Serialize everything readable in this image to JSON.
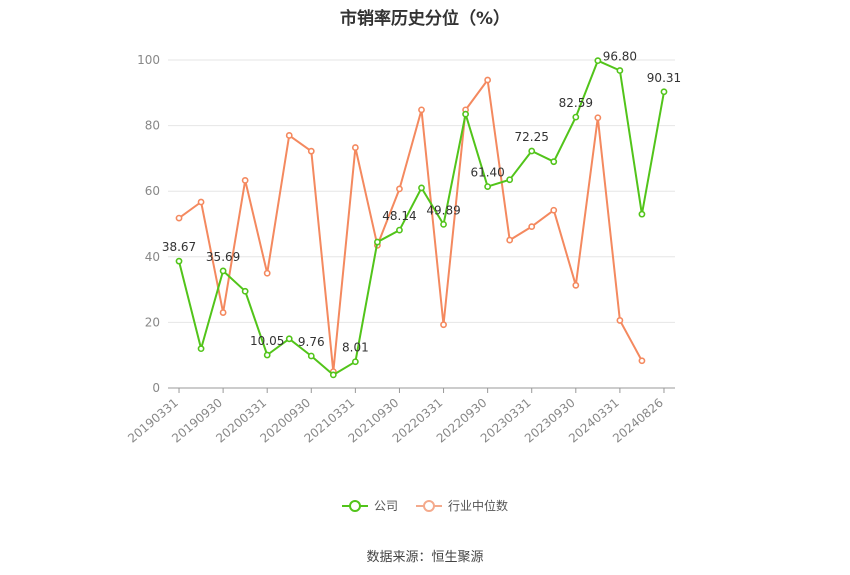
{
  "chart_data": {
    "type": "line",
    "title": "市销率历史分位（%）",
    "x_tick_labels": [
      "20190331",
      "20190930",
      "20200331",
      "20200930",
      "20210331",
      "20210930",
      "20220331",
      "20220930",
      "20230331",
      "20230930",
      "20240331",
      "20240826"
    ],
    "x": [
      "20190331",
      "20190630",
      "20190930",
      "20191231",
      "20200331",
      "20200630",
      "20200930",
      "20201231",
      "20210331",
      "20210630",
      "20210930",
      "20211231",
      "20220331",
      "20220630",
      "20220930",
      "20221231",
      "20230331",
      "20230630",
      "20230930",
      "20231231",
      "20240331",
      "20240630",
      "20240826"
    ],
    "ylim": [
      0,
      100
    ],
    "y_ticks": [
      0,
      20,
      40,
      60,
      80,
      100
    ],
    "grid": true,
    "legend_position": "bottom",
    "series": [
      {
        "name": "公司",
        "color": "#52c41a",
        "values": [
          38.67,
          12,
          35.69,
          29.5,
          10.05,
          15,
          9.76,
          4,
          8.01,
          44.5,
          48.14,
          61,
          49.89,
          83.5,
          61.4,
          63.5,
          72.25,
          69,
          82.59,
          99.8,
          96.8,
          53,
          90.31
        ],
        "labeled_points": [
          {
            "index": 0,
            "text": "38.67"
          },
          {
            "index": 2,
            "text": "35.69"
          },
          {
            "index": 4,
            "text": "10.05"
          },
          {
            "index": 6,
            "text": "9.76"
          },
          {
            "index": 8,
            "text": "8.01"
          },
          {
            "index": 10,
            "text": "48.14"
          },
          {
            "index": 12,
            "text": "49.89"
          },
          {
            "index": 14,
            "text": "61.40"
          },
          {
            "index": 16,
            "text": "72.25"
          },
          {
            "index": 18,
            "text": "82.59"
          },
          {
            "index": 20,
            "text": "96.80"
          },
          {
            "index": 22,
            "text": "90.31"
          }
        ]
      },
      {
        "name": "行业中位数",
        "color": "#f4895f",
        "values": [
          51.8,
          56.7,
          23,
          63.3,
          35,
          77,
          72.2,
          5,
          73.3,
          43.5,
          60.7,
          84.8,
          19.3,
          84.8,
          93.9,
          45.1,
          49.2,
          54.2,
          31.3,
          82.4,
          20.6,
          8.3,
          null
        ]
      }
    ]
  },
  "legend": {
    "company_label": "公司",
    "industry_label": "行业中位数"
  },
  "source_text": "数据来源：恒生聚源"
}
